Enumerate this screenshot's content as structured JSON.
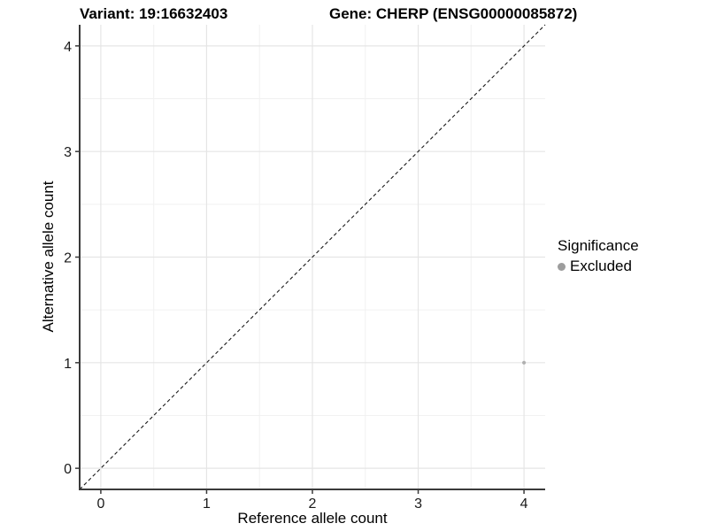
{
  "titles": {
    "variant": "Variant: 19:16632403",
    "gene": "Gene: CHERP (ENSG00000085872)"
  },
  "chart_data": {
    "type": "scatter",
    "xlabel": "Reference allele count",
    "ylabel": "Alternative allele count",
    "xlim": [
      -0.2,
      4.2
    ],
    "ylim": [
      -0.2,
      4.2
    ],
    "x_ticks": [
      0,
      1,
      2,
      3,
      4
    ],
    "y_ticks": [
      0,
      1,
      2,
      3,
      4
    ],
    "minor_gridlines": [
      0.5,
      1.5,
      2.5,
      3.5
    ],
    "grid": true,
    "points": [
      {
        "x": 4,
        "y": 1,
        "series": "Excluded"
      }
    ],
    "reference_line": {
      "equation": "y = x",
      "style": "dashed",
      "color": "#1a1a1a"
    },
    "legend": {
      "title": "Significance",
      "position": "right",
      "items": [
        {
          "label": "Excluded",
          "color": "#9d9d9d",
          "marker": "circle"
        }
      ]
    },
    "colors": {
      "point": "#b0b0b0",
      "major_grid": "#e5e5e5",
      "minor_grid": "#f1f1f1",
      "axis_line": "#3a3a3a",
      "tick_text": "#1a1a1a"
    }
  }
}
